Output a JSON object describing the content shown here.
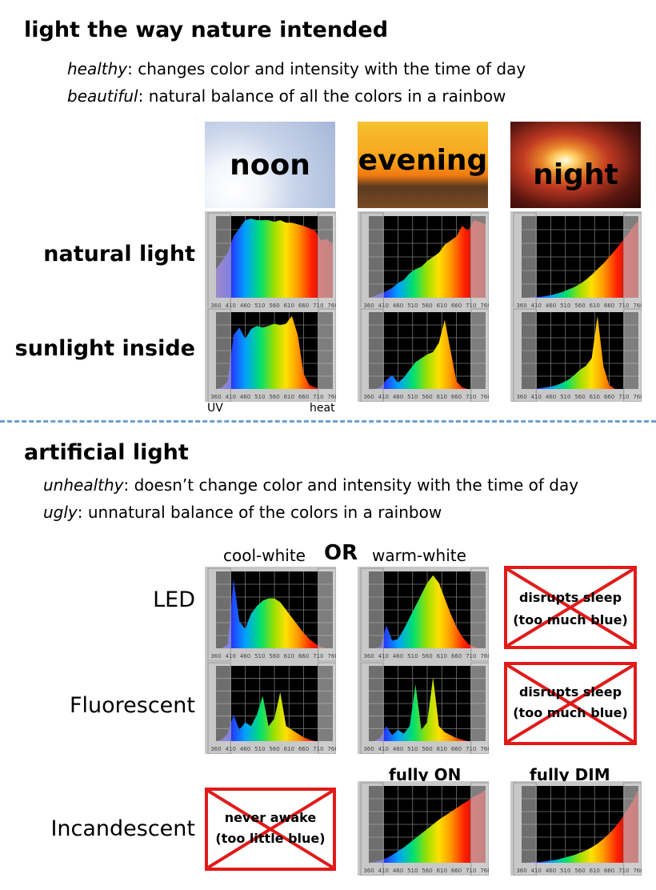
{
  "natural": {
    "title": "light the way nature intended",
    "line1_key": "healthy",
    "line1_rest": ": changes color and intensity with the time of day",
    "line2_key": "beautiful",
    "line2_rest": ":  natural balance of all the colors in a rainbow",
    "photos": [
      "noon",
      "evening",
      "night"
    ],
    "rows": [
      "natural light",
      "sunlight inside"
    ],
    "uv_label": "UV",
    "heat_label": "heat"
  },
  "artificial": {
    "title": "artificial light",
    "line1_key": "unhealthy",
    "line1_rest": ":  doesn’t change color and intensity with the time of day",
    "line2_key": "ugly",
    "line2_rest": ": unnatural balance of the colors in a rainbow",
    "col_cool": "cool-white",
    "col_or": "OR",
    "col_warm": "warm-white",
    "rows": [
      "LED",
      "Fluorescent",
      "Incandescent"
    ],
    "fully_on": "fully ON",
    "fully_dim": "fully DIM",
    "blue_warning_1": "disrupts  sleep",
    "blue_warning_2": "(too much blue)",
    "never_awake_1": "never awake",
    "never_awake_2": "(too little blue)"
  },
  "spectrum_axis": [
    "360",
    "410",
    "460",
    "510",
    "560",
    "610",
    "660",
    "710",
    "760"
  ],
  "colors": {
    "cross_red": "#e21a1a",
    "divider_blue": "#6a9fd0"
  },
  "chart_data": [
    {
      "type": "area",
      "name": "noon natural light",
      "x": [
        360,
        380,
        400,
        420,
        440,
        460,
        480,
        500,
        520,
        540,
        560,
        580,
        600,
        620,
        640,
        660,
        680,
        700,
        720,
        740,
        760
      ],
      "values": [
        0.35,
        0.45,
        0.55,
        0.75,
        0.85,
        0.95,
        0.97,
        0.95,
        0.95,
        0.95,
        0.93,
        0.95,
        0.92,
        0.92,
        0.9,
        0.88,
        0.85,
        0.82,
        0.7,
        0.72,
        0.65
      ]
    },
    {
      "type": "area",
      "name": "evening natural light",
      "x": [
        360,
        380,
        400,
        420,
        440,
        460,
        480,
        500,
        520,
        540,
        560,
        580,
        600,
        620,
        640,
        660,
        680,
        700,
        720,
        740,
        760
      ],
      "values": [
        0,
        0.02,
        0.05,
        0.08,
        0.12,
        0.18,
        0.22,
        0.3,
        0.35,
        0.38,
        0.45,
        0.5,
        0.55,
        0.65,
        0.7,
        0.75,
        0.88,
        0.82,
        0.95,
        0.93,
        0.9
      ]
    },
    {
      "type": "area",
      "name": "night natural light",
      "x": [
        360,
        380,
        400,
        420,
        440,
        460,
        480,
        500,
        520,
        540,
        560,
        580,
        600,
        620,
        640,
        660,
        680,
        700,
        720,
        740,
        760
      ],
      "values": [
        0,
        0,
        0.01,
        0.01,
        0.02,
        0.03,
        0.05,
        0.07,
        0.1,
        0.13,
        0.17,
        0.22,
        0.28,
        0.35,
        0.42,
        0.5,
        0.58,
        0.67,
        0.76,
        0.86,
        0.95
      ]
    },
    {
      "type": "area",
      "name": "noon sunlight inside",
      "x": [
        360,
        380,
        400,
        420,
        440,
        460,
        480,
        500,
        520,
        540,
        560,
        580,
        600,
        620,
        640,
        660,
        680,
        700,
        720,
        740,
        760
      ],
      "values": [
        0,
        0.02,
        0.1,
        0.7,
        0.8,
        0.65,
        0.78,
        0.82,
        0.8,
        0.82,
        0.85,
        0.83,
        0.85,
        0.95,
        0.7,
        0.2,
        0.05,
        0.02,
        0,
        0,
        0
      ]
    },
    {
      "type": "area",
      "name": "evening sunlight inside",
      "x": [
        360,
        380,
        400,
        420,
        440,
        460,
        480,
        500,
        520,
        540,
        560,
        580,
        600,
        620,
        640,
        660,
        680,
        700,
        720,
        740,
        760
      ],
      "values": [
        0,
        0,
        0.02,
        0.12,
        0.18,
        0.08,
        0.15,
        0.25,
        0.35,
        0.4,
        0.45,
        0.48,
        0.6,
        0.9,
        0.5,
        0.1,
        0.02,
        0,
        0,
        0,
        0
      ]
    },
    {
      "type": "area",
      "name": "night sunlight inside",
      "x": [
        360,
        380,
        400,
        420,
        440,
        460,
        480,
        500,
        520,
        540,
        560,
        580,
        600,
        620,
        640,
        660,
        680,
        700,
        720,
        740,
        760
      ],
      "values": [
        0,
        0,
        0,
        0.01,
        0.02,
        0.03,
        0.05,
        0.08,
        0.12,
        0.18,
        0.25,
        0.3,
        0.4,
        0.95,
        0.3,
        0.05,
        0,
        0,
        0,
        0,
        0
      ]
    },
    {
      "type": "area",
      "name": "LED cool-white",
      "x": [
        360,
        380,
        400,
        420,
        440,
        460,
        480,
        500,
        520,
        540,
        560,
        580,
        600,
        620,
        640,
        660,
        680,
        700,
        720,
        740,
        760
      ],
      "values": [
        0,
        0,
        0.05,
        0.9,
        0.35,
        0.25,
        0.45,
        0.55,
        0.62,
        0.65,
        0.65,
        0.6,
        0.5,
        0.4,
        0.3,
        0.2,
        0.12,
        0.06,
        0.02,
        0,
        0
      ]
    },
    {
      "type": "area",
      "name": "LED warm-white",
      "x": [
        360,
        380,
        400,
        420,
        440,
        460,
        480,
        500,
        520,
        540,
        560,
        580,
        600,
        620,
        640,
        660,
        680,
        700,
        720,
        740,
        760
      ],
      "values": [
        0,
        0,
        0.02,
        0.3,
        0.1,
        0.12,
        0.25,
        0.4,
        0.55,
        0.7,
        0.85,
        0.95,
        0.85,
        0.65,
        0.45,
        0.28,
        0.15,
        0.06,
        0.02,
        0,
        0
      ]
    },
    {
      "type": "area",
      "name": "Fluorescent cool-white",
      "x": [
        360,
        380,
        400,
        420,
        440,
        460,
        480,
        500,
        520,
        540,
        560,
        580,
        600,
        620,
        640,
        660,
        680,
        700,
        720,
        740,
        760
      ],
      "values": [
        0,
        0.02,
        0.1,
        0.35,
        0.15,
        0.25,
        0.2,
        0.35,
        0.6,
        0.2,
        0.3,
        0.65,
        0.2,
        0.15,
        0.1,
        0.05,
        0.02,
        0,
        0,
        0,
        0
      ]
    },
    {
      "type": "area",
      "name": "Fluorescent warm-white",
      "x": [
        360,
        380,
        400,
        420,
        440,
        460,
        480,
        500,
        520,
        540,
        560,
        580,
        600,
        620,
        640,
        660,
        680,
        700,
        720,
        740,
        760
      ],
      "values": [
        0,
        0,
        0.05,
        0.2,
        0.08,
        0.15,
        0.1,
        0.2,
        0.75,
        0.15,
        0.25,
        0.85,
        0.2,
        0.12,
        0.08,
        0.04,
        0.02,
        0,
        0,
        0,
        0
      ]
    },
    {
      "type": "area",
      "name": "Incandescent fully ON",
      "x": [
        360,
        380,
        400,
        420,
        440,
        460,
        480,
        500,
        520,
        540,
        560,
        580,
        600,
        620,
        640,
        660,
        680,
        700,
        720,
        740,
        760
      ],
      "values": [
        0,
        0.01,
        0.03,
        0.06,
        0.1,
        0.15,
        0.2,
        0.26,
        0.32,
        0.38,
        0.44,
        0.5,
        0.56,
        0.61,
        0.66,
        0.71,
        0.76,
        0.81,
        0.86,
        0.9,
        0.95
      ]
    },
    {
      "type": "area",
      "name": "Incandescent fully DIM",
      "x": [
        360,
        380,
        400,
        420,
        440,
        460,
        480,
        500,
        520,
        540,
        560,
        580,
        600,
        620,
        640,
        660,
        680,
        700,
        720,
        740,
        760
      ],
      "values": [
        0,
        0,
        0.01,
        0.01,
        0.02,
        0.03,
        0.04,
        0.06,
        0.08,
        0.1,
        0.13,
        0.16,
        0.2,
        0.25,
        0.31,
        0.38,
        0.46,
        0.56,
        0.68,
        0.8,
        0.95
      ]
    }
  ]
}
